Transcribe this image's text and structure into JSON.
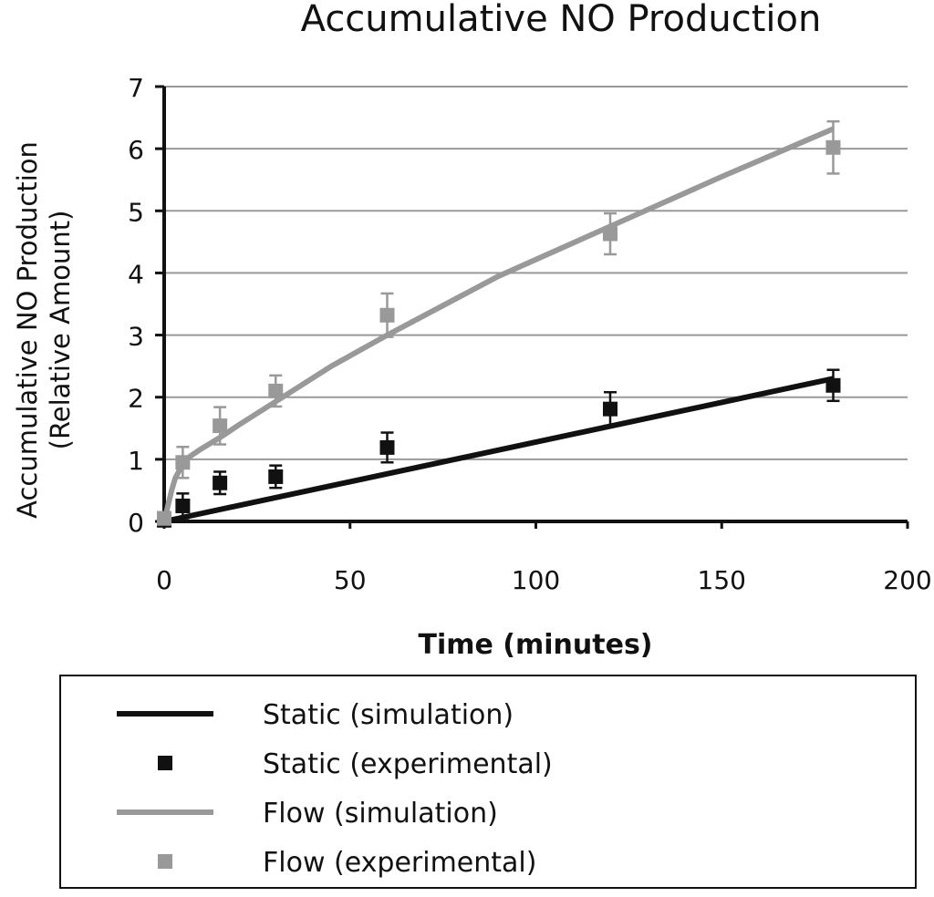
{
  "chart_data": {
    "type": "line",
    "title": "Accumulative NO Production",
    "xlabel": "Time (minutes)",
    "ylabel_line1": "Accumulative NO Production",
    "ylabel_line2": "(Relative Amount)",
    "xlim": [
      0,
      200
    ],
    "ylim": [
      0,
      7
    ],
    "xticks": [
      0,
      50,
      100,
      150,
      200
    ],
    "yticks": [
      0,
      1,
      2,
      3,
      4,
      5,
      6,
      7
    ],
    "grid": "horizontal",
    "legend_placement": "bottom",
    "series": [
      {
        "name": "Static (simulation)",
        "kind": "line",
        "color": "#111111",
        "x": [
          0,
          180
        ],
        "y": [
          0,
          2.3
        ]
      },
      {
        "name": "Static (experimental)",
        "kind": "marker",
        "color": "#111111",
        "x": [
          0,
          5,
          15,
          30,
          60,
          120,
          180
        ],
        "y": [
          0.02,
          0.25,
          0.62,
          0.72,
          1.19,
          1.81,
          2.19
        ],
        "err": [
          0.1,
          0.2,
          0.18,
          0.18,
          0.24,
          0.27,
          0.25
        ]
      },
      {
        "name": "Flow (simulation)",
        "kind": "line",
        "color": "#999999",
        "x": [
          0,
          1,
          2,
          3,
          5,
          7,
          10,
          15,
          20,
          30,
          45,
          60,
          90,
          120,
          150,
          180
        ],
        "y": [
          0,
          0.25,
          0.5,
          0.7,
          0.92,
          1.05,
          1.17,
          1.35,
          1.55,
          1.93,
          2.5,
          3.0,
          3.95,
          4.75,
          5.55,
          6.32
        ]
      },
      {
        "name": "Flow (experimental)",
        "kind": "marker",
        "color": "#999999",
        "x": [
          0,
          5,
          15,
          30,
          60,
          120,
          180
        ],
        "y": [
          0.05,
          0.95,
          1.54,
          2.1,
          3.32,
          4.63,
          6.02
        ],
        "err": [
          0.1,
          0.25,
          0.3,
          0.25,
          0.35,
          0.33,
          0.42
        ]
      }
    ]
  }
}
